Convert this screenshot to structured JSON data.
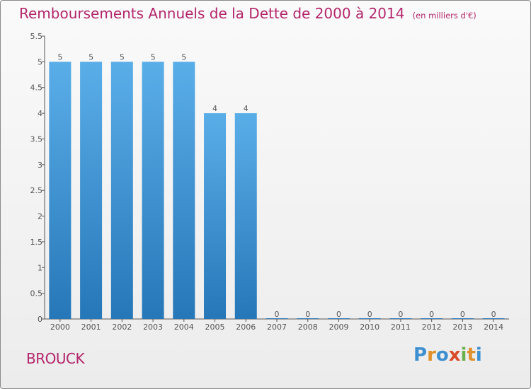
{
  "chart_data": {
    "type": "bar",
    "title": "Remboursements Annuels de la Dette de 2000 à 2014",
    "subtitle": "(en milliers d'€)",
    "categories": [
      "2000",
      "2001",
      "2002",
      "2003",
      "2004",
      "2005",
      "2006",
      "2007",
      "2008",
      "2009",
      "2010",
      "2011",
      "2012",
      "2013",
      "2014"
    ],
    "values": [
      5,
      5,
      5,
      5,
      5,
      4,
      4,
      0,
      0,
      0,
      0,
      0,
      0,
      0,
      0
    ],
    "value_labels": [
      "5",
      "5",
      "5",
      "5",
      "5",
      "4",
      "4",
      "0",
      "0",
      "0",
      "0",
      "0",
      "0",
      "0",
      "0"
    ],
    "y_ticks": [
      "0",
      "0.5",
      "1",
      "1.5",
      "2",
      "2.5",
      "3",
      "3.5",
      "4",
      "4.5",
      "5",
      "5.5"
    ],
    "xlabel": "",
    "ylabel": "",
    "ylim": [
      0,
      5.5
    ],
    "grid": false,
    "colors": {
      "bar_top": "#5aaee8",
      "bar_bottom": "#2677b8",
      "title": "#b3256b"
    }
  },
  "footer": {
    "commune": "BROUCK",
    "logo_text": "Proxiti",
    "logo_colors": [
      "#3e8fd0",
      "#e0912b",
      "#3e8fd0",
      "#d84a2a",
      "#6ab04c",
      "#e0912b",
      "#3e8fd0"
    ]
  }
}
